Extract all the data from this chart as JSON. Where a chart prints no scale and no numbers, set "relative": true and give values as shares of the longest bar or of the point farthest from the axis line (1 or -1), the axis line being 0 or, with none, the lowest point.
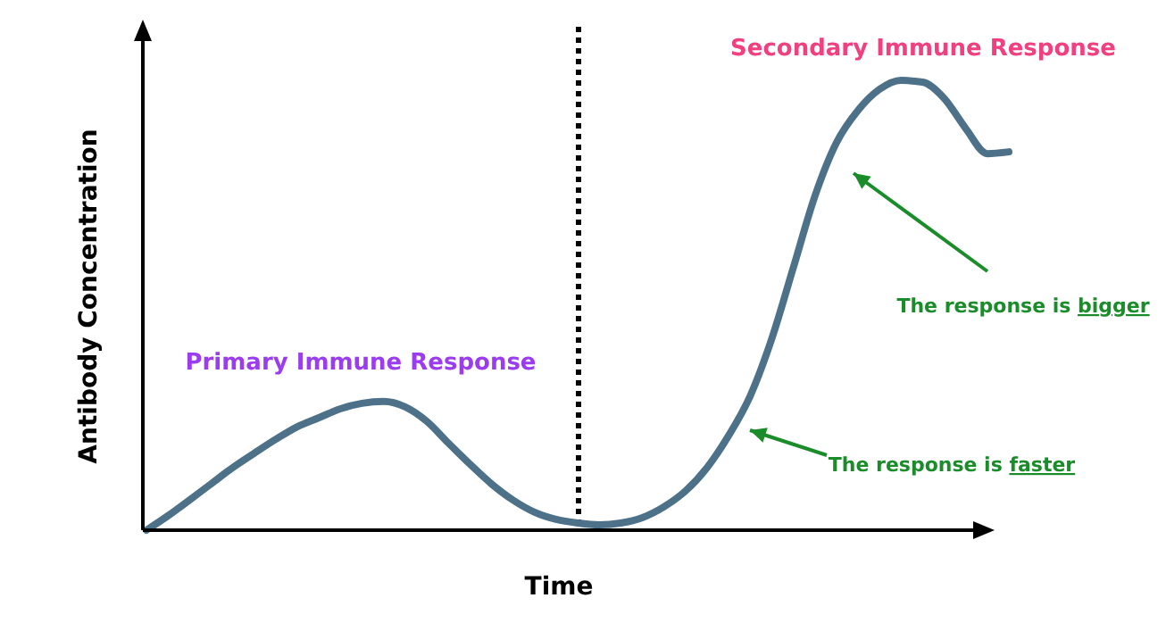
{
  "chart_data": {
    "type": "line",
    "relative": true,
    "xlabel": "Time",
    "ylabel": "Antibody Concentration",
    "marker": "none",
    "line_style": "solid",
    "categories": [
      null,
      null,
      null,
      null,
      null,
      null,
      null,
      null,
      null,
      null,
      null,
      null,
      null,
      null,
      null,
      null,
      null,
      null,
      null,
      null,
      null,
      null,
      null,
      null,
      null,
      null,
      null,
      null,
      null,
      null,
      null,
      null,
      null,
      null,
      null,
      null,
      null,
      null,
      null,
      null,
      null
    ],
    "series": [
      {
        "color": "#4d7189",
        "values": [
          0,
          0.032,
          0.067,
          0.103,
          0.139,
          0.171,
          0.202,
          0.23,
          0.25,
          0.27,
          0.282,
          0.286,
          0.274,
          0.242,
          0.194,
          0.147,
          0.103,
          0.067,
          0.04,
          0.024,
          0.016,
          0.012,
          0.016,
          0.028,
          0.052,
          0.087,
          0.139,
          0.21,
          0.298,
          0.425,
          0.583,
          0.742,
          0.861,
          0.933,
          0.98,
          1,
          0.996,
          0.96,
          0.893,
          0.837,
          0.841
        ]
      }
    ],
    "annotations": [
      "Primary Immune Response",
      "Secondary Immune Response",
      "The response is bigger",
      "The response is faster"
    ]
  }
}
